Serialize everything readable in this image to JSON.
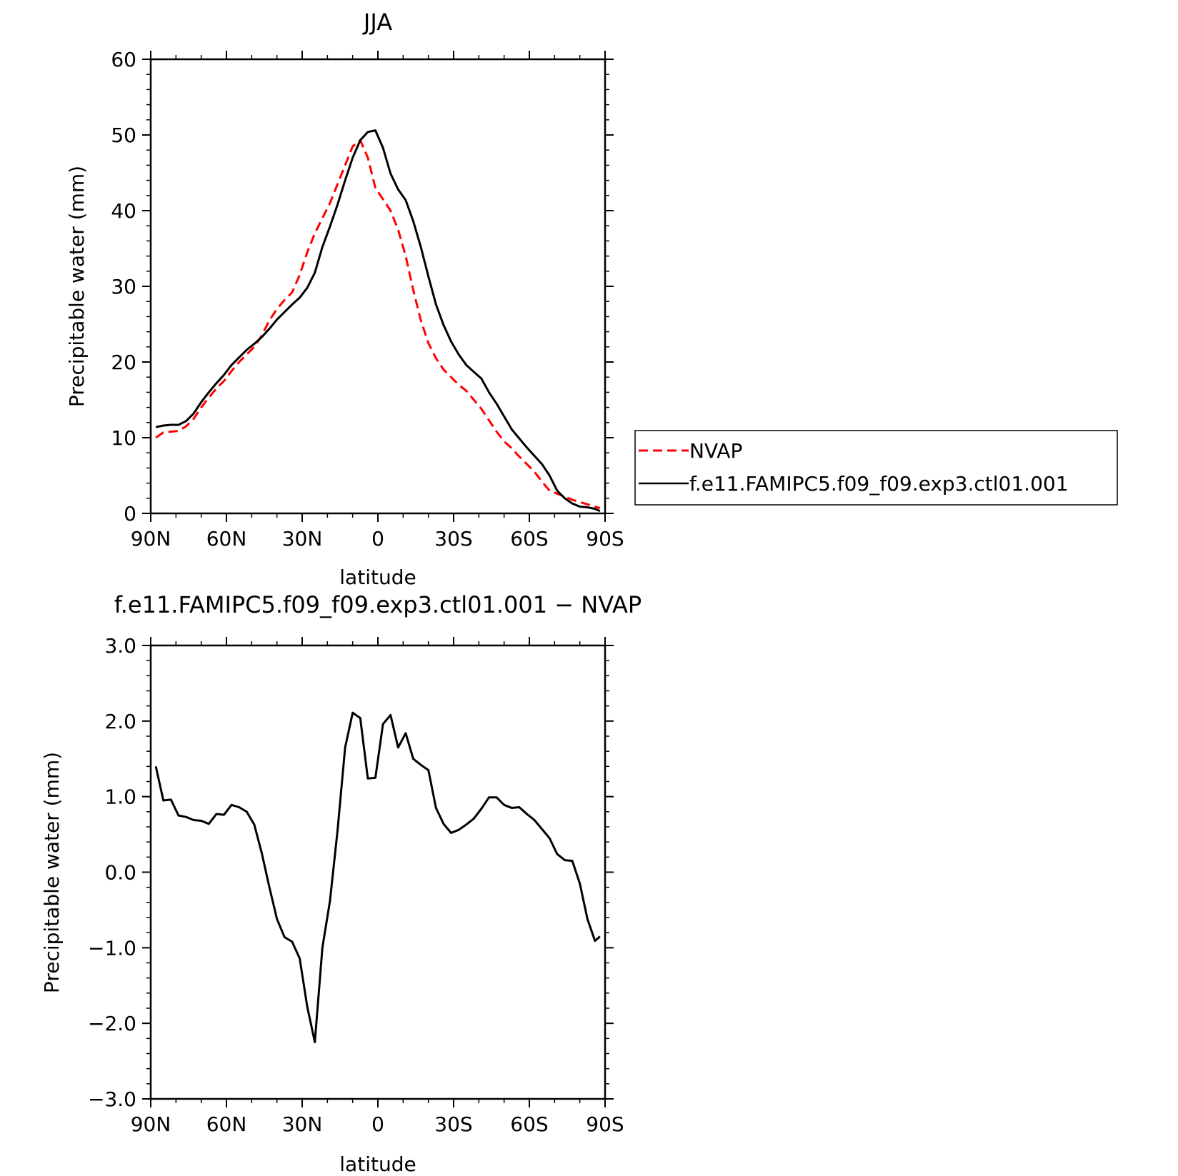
{
  "chart_data": [
    {
      "type": "line",
      "title": "JJA",
      "xlabel": "latitude",
      "ylabel": "Precipitable water (mm)",
      "xlim": [
        90,
        -90
      ],
      "ylim": [
        0,
        60
      ],
      "xticks": [
        90,
        60,
        30,
        0,
        -30,
        -60,
        -90
      ],
      "xtick_labels": [
        "90N",
        "60N",
        "30N",
        "0",
        "30S",
        "60S",
        "90S"
      ],
      "yticks": [
        0,
        10,
        20,
        30,
        40,
        50,
        60
      ],
      "ytick_labels": [
        "0",
        "10",
        "20",
        "30",
        "40",
        "50",
        "60"
      ],
      "grid": false,
      "legend": "right",
      "x": [
        88,
        85,
        82,
        79,
        76,
        73,
        70,
        67,
        64,
        61,
        58,
        55,
        52,
        49,
        46,
        43,
        40,
        37,
        34,
        31,
        28,
        25,
        22,
        19,
        16,
        13,
        10,
        7,
        4,
        1,
        -2,
        -5,
        -8,
        -11,
        -14,
        -17,
        -20,
        -23,
        -26,
        -29,
        -32,
        -35,
        -38,
        -41,
        -44,
        -47,
        -50,
        -53,
        -56,
        -59,
        -62,
        -65,
        -68,
        -71,
        -74,
        -77,
        -80,
        -83,
        -86,
        -88
      ],
      "series": [
        {
          "name": "NVAP",
          "color": "#ff0000",
          "dash": "dashed",
          "values": [
            10.0,
            10.7,
            10.8,
            10.9,
            11.5,
            12.5,
            14.0,
            15.3,
            16.5,
            17.5,
            18.8,
            20.0,
            21.0,
            22.0,
            23.5,
            25.5,
            27.0,
            28.2,
            29.2,
            31.5,
            34.5,
            37.0,
            39.0,
            41.0,
            43.5,
            46.0,
            48.5,
            49.3,
            47.0,
            43.0,
            41.5,
            40.0,
            37.5,
            34.0,
            29.5,
            25.5,
            22.5,
            20.5,
            19.0,
            18.0,
            17.0,
            16.2,
            15.0,
            13.8,
            12.3,
            10.8,
            9.5,
            8.6,
            7.5,
            6.5,
            5.5,
            4.2,
            3.0,
            2.6,
            2.2,
            1.8,
            1.5,
            1.2,
            0.9,
            0.7
          ]
        },
        {
          "name": "f.e11.FAMIPC5.f09_f09.exp3.ctl01.001",
          "color": "#000000",
          "dash": "solid",
          "values": [
            11.4,
            11.6,
            11.7,
            11.7,
            12.2,
            13.2,
            14.7,
            16.0,
            17.2,
            18.3,
            19.6,
            20.6,
            21.6,
            22.4,
            23.3,
            24.4,
            25.6,
            26.6,
            27.6,
            28.5,
            29.8,
            31.8,
            35.2,
            37.9,
            40.8,
            44.0,
            47.0,
            49.3,
            50.4,
            50.6,
            48.3,
            44.9,
            42.8,
            41.4,
            38.6,
            35.2,
            31.3,
            27.6,
            24.9,
            22.7,
            21.0,
            19.6,
            18.7,
            17.8,
            16.0,
            14.5,
            12.8,
            11.1,
            9.9,
            8.7,
            7.6,
            6.5,
            5.0,
            3.0,
            2.0,
            1.3,
            0.9,
            0.8,
            0.6,
            0.3
          ]
        }
      ]
    },
    {
      "type": "line",
      "title": "f.e11.FAMIPC5.f09_f09.exp3.ctl01.001 − NVAP",
      "xlabel": "latitude",
      "ylabel": "Precipitable water (mm)",
      "xlim": [
        90,
        -90
      ],
      "ylim": [
        -3.0,
        3.0
      ],
      "xticks": [
        90,
        60,
        30,
        0,
        -30,
        -60,
        -90
      ],
      "xtick_labels": [
        "90N",
        "60N",
        "30N",
        "0",
        "30S",
        "60S",
        "90S"
      ],
      "yticks": [
        -3.0,
        -2.0,
        -1.0,
        0.0,
        1.0,
        2.0,
        3.0
      ],
      "ytick_labels": [
        "−3.0",
        "−2.0",
        "−1.0",
        "0.0",
        "1.0",
        "2.0",
        "3.0"
      ],
      "grid": false,
      "x": [
        88,
        85,
        82,
        79,
        76,
        73,
        70,
        67,
        64,
        61,
        58,
        55,
        52,
        49,
        46,
        43,
        40,
        37,
        34,
        31,
        28,
        25,
        22,
        19,
        16,
        13,
        10,
        7,
        4,
        1,
        -2,
        -5,
        -8,
        -11,
        -14,
        -17,
        -20,
        -23,
        -26,
        -29,
        -32,
        -35,
        -38,
        -41,
        -44,
        -47,
        -50,
        -53,
        -56,
        -59,
        -62,
        -65,
        -68,
        -71,
        -74,
        -77,
        -80,
        -83,
        -86,
        -88
      ],
      "series": [
        {
          "color": "#000000",
          "values": [
            1.4,
            0.95,
            0.96,
            0.75,
            0.73,
            0.69,
            0.68,
            0.64,
            0.77,
            0.76,
            0.89,
            0.86,
            0.8,
            0.63,
            0.25,
            -0.2,
            -0.62,
            -0.86,
            -0.92,
            -1.14,
            -1.78,
            -2.25,
            -1.0,
            -0.38,
            0.55,
            1.65,
            2.11,
            2.04,
            1.24,
            1.25,
            1.96,
            2.08,
            1.65,
            1.84,
            1.5,
            1.42,
            1.35,
            0.85,
            0.64,
            0.52,
            0.56,
            0.63,
            0.71,
            0.84,
            0.99,
            0.99,
            0.89,
            0.85,
            0.86,
            0.77,
            0.69,
            0.57,
            0.45,
            0.24,
            0.16,
            0.15,
            -0.15,
            -0.62,
            -0.91,
            -0.85
          ]
        }
      ]
    }
  ]
}
